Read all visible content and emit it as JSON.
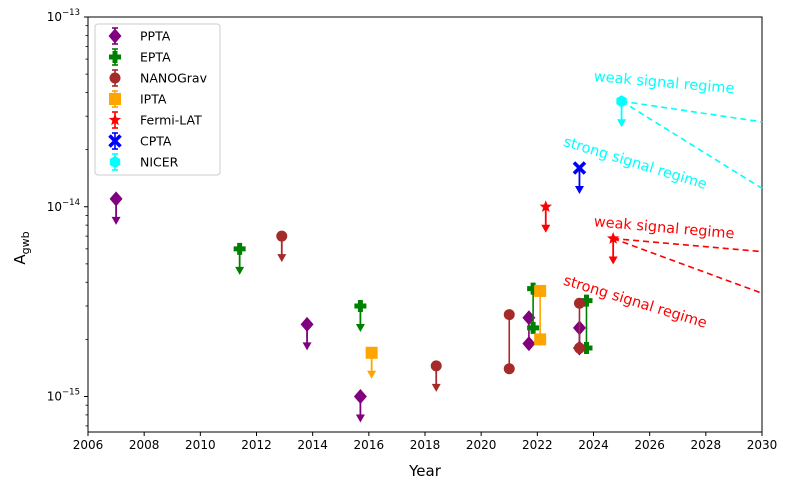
{
  "chart_data": {
    "type": "scatter",
    "xlabel": "Year",
    "ylabel": "A_gwb",
    "xlim": [
      2006,
      2030
    ],
    "ylim": [
      6.5e-16,
      1e-13
    ],
    "yscale": "log",
    "xticks": [
      2006,
      2008,
      2010,
      2012,
      2014,
      2016,
      2018,
      2020,
      2022,
      2024,
      2026,
      2028,
      2030
    ],
    "ytick_labels": [
      {
        "value": 1e-13,
        "base": "10",
        "exp": "−13"
      },
      {
        "value": 1e-14,
        "base": "10",
        "exp": "−14"
      },
      {
        "value": 1e-15,
        "base": "10",
        "exp": "−15"
      }
    ],
    "legend_position": "upper-left",
    "series": [
      {
        "name": "PPTA",
        "color": "#800080",
        "marker": "diamond",
        "upper_limits": [
          {
            "x": 2007.0,
            "y": 1.1e-14
          },
          {
            "x": 2013.8,
            "y": 2.4e-15
          },
          {
            "x": 2015.7,
            "y": 1e-15
          }
        ],
        "ranges": [
          {
            "x": 2021.7,
            "low": 1.9e-15,
            "high": 2.6e-15
          },
          {
            "x": 2023.5,
            "low": 1.8e-15,
            "high": 2.3e-15
          }
        ]
      },
      {
        "name": "EPTA",
        "color": "#008000",
        "marker": "plus",
        "upper_limits": [
          {
            "x": 2011.4,
            "y": 6e-15
          },
          {
            "x": 2015.7,
            "y": 3e-15
          }
        ],
        "ranges": [
          {
            "x": 2021.85,
            "low": 2.3e-15,
            "high": 3.7e-15
          },
          {
            "x": 2023.75,
            "low": 1.8e-15,
            "high": 3.2e-15
          }
        ]
      },
      {
        "name": "NANOGrav",
        "color": "#a52a2a",
        "marker": "circle",
        "upper_limits": [
          {
            "x": 2012.9,
            "y": 7e-15
          },
          {
            "x": 2018.4,
            "y": 1.45e-15
          }
        ],
        "ranges": [
          {
            "x": 2021.0,
            "low": 1.4e-15,
            "high": 2.7e-15
          },
          {
            "x": 2023.5,
            "low": 1.8e-15,
            "high": 3.1e-15
          }
        ]
      },
      {
        "name": "IPTA",
        "color": "#ffa500",
        "marker": "square",
        "upper_limits": [
          {
            "x": 2016.1,
            "y": 1.7e-15
          }
        ],
        "ranges": [
          {
            "x": 2022.1,
            "low": 2e-15,
            "high": 3.6e-15
          }
        ]
      },
      {
        "name": "Fermi-LAT",
        "color": "#ff0000",
        "marker": "star",
        "upper_limits": [
          {
            "x": 2022.3,
            "y": 1e-14
          },
          {
            "x": 2024.7,
            "y": 6.8e-15
          }
        ],
        "ranges": []
      },
      {
        "name": "CPTA",
        "color": "#0000ff",
        "marker": "x",
        "upper_limits": [
          {
            "x": 2023.5,
            "y": 1.6e-14
          }
        ],
        "ranges": []
      },
      {
        "name": "NICER",
        "color": "#00ffff",
        "marker": "hexagon",
        "upper_limits": [
          {
            "x": 2025.0,
            "y": 3.6e-14
          }
        ],
        "ranges": []
      }
    ],
    "projections": [
      {
        "color": "#00ffff",
        "start": [
          2025.0,
          3.6e-14
        ],
        "end": [
          2030,
          2.8e-14
        ]
      },
      {
        "color": "#00ffff",
        "start": [
          2025.0,
          3.6e-14
        ],
        "end": [
          2030,
          1.25e-14
        ]
      },
      {
        "color": "#ff0000",
        "start": [
          2024.7,
          6.8e-15
        ],
        "end": [
          2030,
          5.8e-15
        ]
      },
      {
        "color": "#ff0000",
        "start": [
          2024.7,
          6.8e-15
        ],
        "end": [
          2030,
          3.5e-15
        ]
      }
    ],
    "annotations": [
      {
        "text": "weak signal regime",
        "color": "#00ffff",
        "x": 2024.0,
        "y": 4.6e-14,
        "rotation": 5
      },
      {
        "text": "strong signal regime",
        "color": "#00ffff",
        "x": 2022.9,
        "y": 2.1e-14,
        "rotation": 17
      },
      {
        "text": "weak signal regime",
        "color": "#ff0000",
        "x": 2024.0,
        "y": 7.9e-15,
        "rotation": 5
      },
      {
        "text": "strong signal regime",
        "color": "#ff0000",
        "x": 2022.9,
        "y": 3.9e-15,
        "rotation": 17
      }
    ]
  }
}
